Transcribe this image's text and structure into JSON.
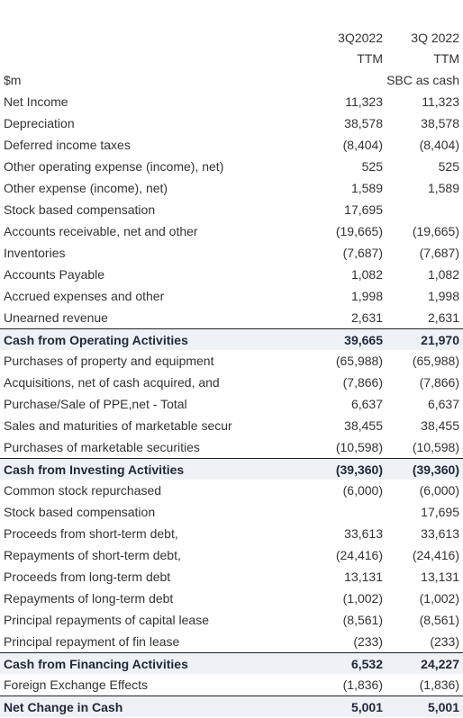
{
  "header": {
    "col1_line1": "3Q2022",
    "col2_line1": "3Q 2022",
    "col1_line2": "TTM",
    "col2_line2": "TTM",
    "col2_line3": "SBC as cash",
    "unit_label": "$m"
  },
  "rows": [
    {
      "label": "Net Income",
      "c1": "11,323",
      "c2": "11,323",
      "total": false
    },
    {
      "label": "Depreciation",
      "c1": "38,578",
      "c2": "38,578",
      "total": false
    },
    {
      "label": "Deferred income taxes",
      "c1": "(8,404)",
      "c2": "(8,404)",
      "total": false
    },
    {
      "label": "Other operating expense (income), net)",
      "c1": "525",
      "c2": "525",
      "total": false
    },
    {
      "label": "Other expense (income), net)",
      "c1": "1,589",
      "c2": "1,589",
      "total": false
    },
    {
      "label": "Stock based compensation",
      "c1": "17,695",
      "c2": "",
      "total": false
    },
    {
      "label": "Accounts receivable, net and other",
      "c1": "(19,665)",
      "c2": "(19,665)",
      "total": false
    },
    {
      "label": "Inventories",
      "c1": "(7,687)",
      "c2": "(7,687)",
      "total": false
    },
    {
      "label": "Accounts Payable",
      "c1": "1,082",
      "c2": "1,082",
      "total": false
    },
    {
      "label": "Accrued expenses and other",
      "c1": "1,998",
      "c2": "1,998",
      "total": false
    },
    {
      "label": "Unearned revenue",
      "c1": "2,631",
      "c2": "2,631",
      "total": false
    },
    {
      "label": "Cash from Operating Activities",
      "c1": "39,665",
      "c2": "21,970",
      "total": true
    },
    {
      "label": "Purchases of property and equipment",
      "c1": "(65,988)",
      "c2": "(65,988)",
      "total": false
    },
    {
      "label": "Acquisitions, net of cash acquired, and",
      "c1": "(7,866)",
      "c2": "(7,866)",
      "total": false
    },
    {
      "label": "Purchase/Sale of PPE,net - Total",
      "c1": "6,637",
      "c2": "6,637",
      "total": false
    },
    {
      "label": "Sales and maturities of marketable secur",
      "c1": "38,455",
      "c2": "38,455",
      "total": false
    },
    {
      "label": "Purchases of marketable securities",
      "c1": "(10,598)",
      "c2": "(10,598)",
      "total": false
    },
    {
      "label": "Cash from Investing Activities",
      "c1": "(39,360)",
      "c2": "(39,360)",
      "total": true
    },
    {
      "label": "Common stock repurchased",
      "c1": "(6,000)",
      "c2": "(6,000)",
      "total": false
    },
    {
      "label": "Stock based compensation",
      "c1": "",
      "c2": "17,695",
      "total": false
    },
    {
      "label": "Proceeds from short-term debt,",
      "c1": "33,613",
      "c2": "33,613",
      "total": false
    },
    {
      "label": "Repayments of short-term debt,",
      "c1": "(24,416)",
      "c2": "(24,416)",
      "total": false
    },
    {
      "label": "Proceeds from long-term debt",
      "c1": "13,131",
      "c2": "13,131",
      "total": false
    },
    {
      "label": "Repayments of long-term debt",
      "c1": "(1,002)",
      "c2": "(1,002)",
      "total": false
    },
    {
      "label": "Principal repayments of capital lease",
      "c1": "(8,561)",
      "c2": "(8,561)",
      "total": false
    },
    {
      "label": "Principal repayment of fin lease",
      "c1": "(233)",
      "c2": "(233)",
      "total": false
    },
    {
      "label": "Cash from Financing Activities",
      "c1": "6,532",
      "c2": "24,227",
      "total": true
    },
    {
      "label": "Foreign Exchange Effects",
      "c1": "(1,836)",
      "c2": "(1,836)",
      "total": false
    },
    {
      "label": "Net Change in Cash",
      "c1": "5,001",
      "c2": "5,001",
      "total": true
    }
  ]
}
